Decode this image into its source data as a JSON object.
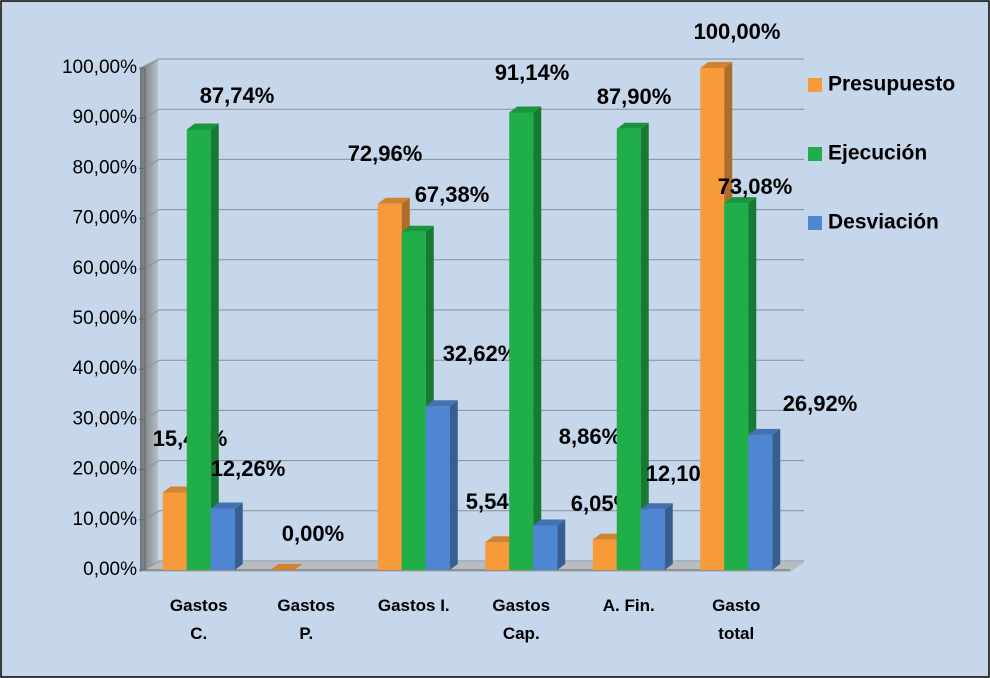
{
  "chart_data": {
    "type": "bar3d",
    "categories": [
      "Gastos C.",
      "Gastos P.",
      "Gastos I.",
      "Gastos Cap.",
      "A. Fin.",
      "Gasto total"
    ],
    "series": [
      {
        "name": "Presupuesto",
        "color": "#f79a3a",
        "values": [
          15.45,
          0,
          72.96,
          5.54,
          6.05,
          100
        ],
        "value_labels": [
          "15,45%",
          "0,00%",
          "72,96%",
          "5,54%",
          "6,05%",
          "100,00%"
        ]
      },
      {
        "name": "Ejecución",
        "color": "#1fae48",
        "values": [
          87.74,
          null,
          67.38,
          91.14,
          87.9,
          73.08
        ],
        "value_labels": [
          "87,74%",
          null,
          "67,38%",
          "91,14%",
          "87,90%",
          "73,08%"
        ]
      },
      {
        "name": "Desviación",
        "color": "#4f86d2",
        "values": [
          12.26,
          null,
          32.62,
          8.86,
          12.1,
          26.92
        ],
        "value_labels": [
          "12,26%",
          null,
          "32,62%",
          "8,86%",
          "12,10%",
          "26,92%"
        ]
      }
    ],
    "ylim": [
      0,
      100
    ],
    "yticks": [
      {
        "value": 0,
        "label": "0,00%"
      },
      {
        "value": 10,
        "label": "10,00%"
      },
      {
        "value": 20,
        "label": "20,00%"
      },
      {
        "value": 30,
        "label": "30,00%"
      },
      {
        "value": 40,
        "label": "40,00%"
      },
      {
        "value": 50,
        "label": "50,00%"
      },
      {
        "value": 60,
        "label": "60,00%"
      },
      {
        "value": 70,
        "label": "70,00%"
      },
      {
        "value": 80,
        "label": "80,00%"
      },
      {
        "value": 90,
        "label": "90,00%"
      },
      {
        "value": 100,
        "label": "100,00%"
      }
    ],
    "grid": true,
    "legend": "right"
  }
}
